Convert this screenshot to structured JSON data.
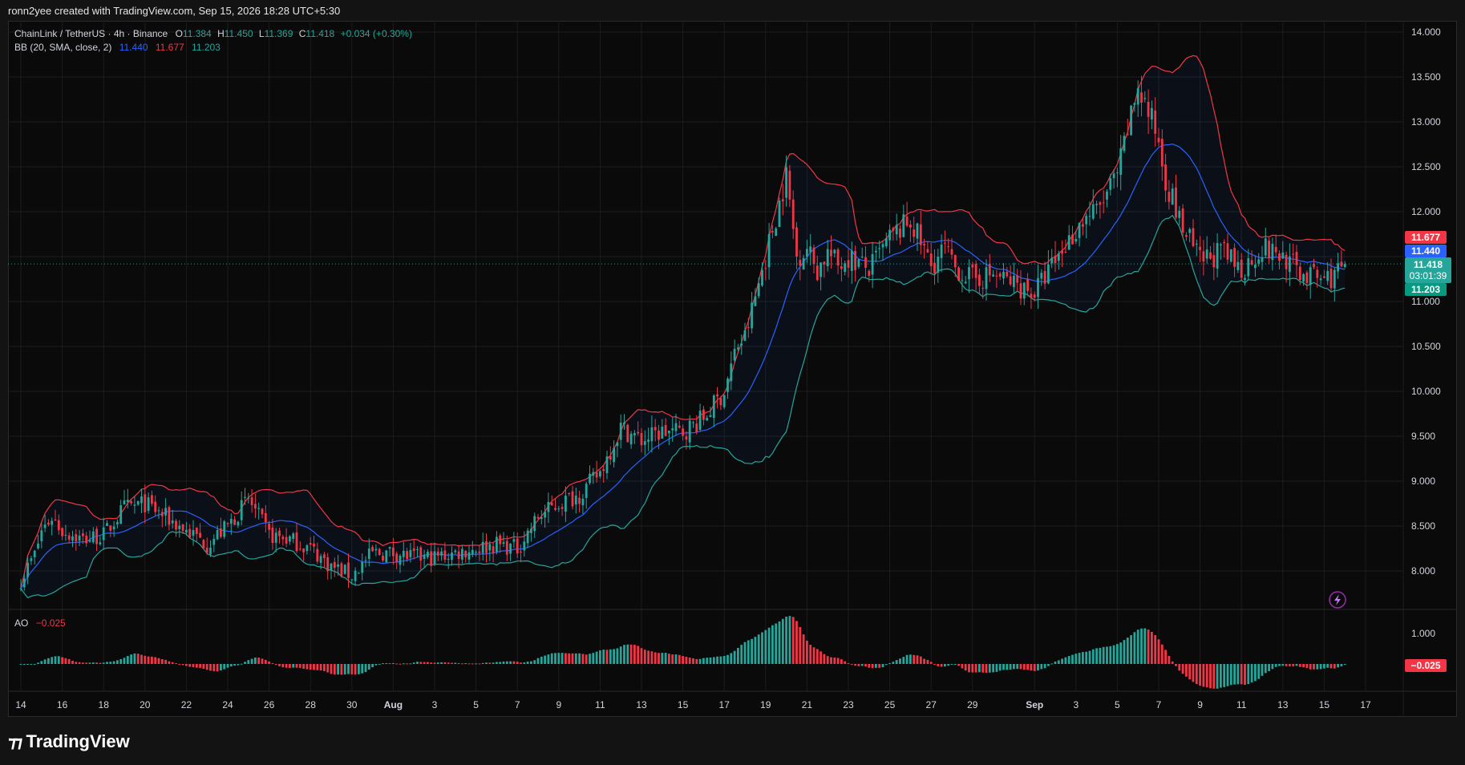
{
  "header": {
    "text": "ronn2yee created with TradingView.com, Sep 15, 2026 18:28 UTC+5:30"
  },
  "legend": {
    "symbol": "ChainLink / TetherUS · 4h · Binance",
    "o_label": "O",
    "o_value": "11.384",
    "h_label": "H",
    "h_value": "11.450",
    "l_label": "L",
    "l_value": "11.369",
    "c_label": "C",
    "c_value": "11.418",
    "change": "+0.034 (+0.30%)",
    "bb_label": "BB (20, SMA, close, 2)",
    "bb_basis": "11.440",
    "bb_upper": "11.677",
    "bb_lower": "11.203"
  },
  "ao_legend": {
    "label": "AO",
    "value": "−0.025"
  },
  "price_badges": {
    "upper": "11.677",
    "basis": "11.440",
    "last": "11.418",
    "countdown": "03:01:39",
    "lower": "11.203"
  },
  "ao_badge": "−0.025",
  "footer": {
    "brand": "TradingView"
  },
  "colors": {
    "up": "#26a69a",
    "down": "#f23645",
    "basis": "#2962ff",
    "upper_band": "#f23645",
    "lower_band": "#26a69a"
  },
  "chart_data": [
    {
      "type": "candlestick",
      "title": "ChainLink / TetherUS · 4h · Binance",
      "y_ticks": [
        "14.000",
        "13.500",
        "13.000",
        "12.500",
        "12.000",
        "11.500",
        "11.000",
        "10.500",
        "10.000",
        "9.500",
        "9.000",
        "8.500",
        "8.000"
      ],
      "ylim": [
        7.65,
        14.1
      ],
      "x_ticks": [
        "14",
        "16",
        "18",
        "20",
        "22",
        "24",
        "26",
        "28",
        "30",
        "Aug",
        "3",
        "5",
        "7",
        "9",
        "11",
        "13",
        "15",
        "17",
        "19",
        "21",
        "23",
        "25",
        "27",
        "29",
        "Sep",
        "3",
        "5",
        "7",
        "9",
        "11",
        "13",
        "15",
        "17"
      ],
      "x_ticks_day_index": [
        0,
        2,
        4,
        6,
        8,
        10,
        12,
        14,
        16,
        18,
        20,
        22,
        24,
        26,
        28,
        30,
        32,
        34,
        36,
        38,
        40,
        42,
        44,
        46,
        49,
        51,
        53,
        55,
        57,
        59,
        61,
        63,
        65
      ],
      "price_keypoints_day_index": [
        0,
        0.7,
        1,
        1.5,
        2,
        3,
        4,
        5,
        6,
        7,
        8,
        9,
        10,
        11,
        12,
        13,
        14,
        15,
        16,
        17,
        18,
        19,
        20,
        21,
        22,
        23,
        24,
        25,
        26,
        27,
        28,
        29,
        30,
        31,
        32,
        33,
        34,
        34.6,
        35,
        36,
        37,
        37.5,
        38,
        38.5,
        39,
        39.5,
        40,
        41,
        42,
        43,
        44,
        44.7,
        45,
        46,
        47,
        48,
        49,
        50,
        51,
        51.5,
        52,
        53,
        54,
        55,
        55.3,
        56,
        57,
        58,
        59,
        60,
        61,
        62,
        63,
        63.5,
        64
      ],
      "price_keypoints_close": [
        7.9,
        8.2,
        8.45,
        8.6,
        8.45,
        8.35,
        8.4,
        8.7,
        8.75,
        8.6,
        8.45,
        8.3,
        8.5,
        8.8,
        8.4,
        8.35,
        8.25,
        8.05,
        7.95,
        8.2,
        8.2,
        8.15,
        8.15,
        8.2,
        8.25,
        8.3,
        8.25,
        8.6,
        8.75,
        8.85,
        9.1,
        9.6,
        9.45,
        9.55,
        9.55,
        9.7,
        10.0,
        10.5,
        10.6,
        11.5,
        12.4,
        11.5,
        11.6,
        11.35,
        11.55,
        11.4,
        11.5,
        11.35,
        11.7,
        11.9,
        11.4,
        11.6,
        11.4,
        11.25,
        11.3,
        11.2,
        11.1,
        11.45,
        11.8,
        11.95,
        12.0,
        12.4,
        13.4,
        12.8,
        12.4,
        11.9,
        11.45,
        11.55,
        11.35,
        11.6,
        11.5,
        11.3,
        11.25,
        11.3,
        11.418
      ],
      "bollinger": {
        "period": 20,
        "type": "SMA",
        "source": "close",
        "stddev": 2,
        "basis": 11.44,
        "upper": 11.677,
        "lower": 11.203
      },
      "last": {
        "open": 11.384,
        "high": 11.45,
        "low": 11.369,
        "close": 11.418,
        "change": 0.034,
        "change_pct": 0.3
      }
    },
    {
      "type": "bar",
      "title": "AO",
      "y_ticks": [
        "1.000"
      ],
      "ylim": [
        -0.8,
        1.6
      ],
      "value_last": -0.025
    }
  ]
}
